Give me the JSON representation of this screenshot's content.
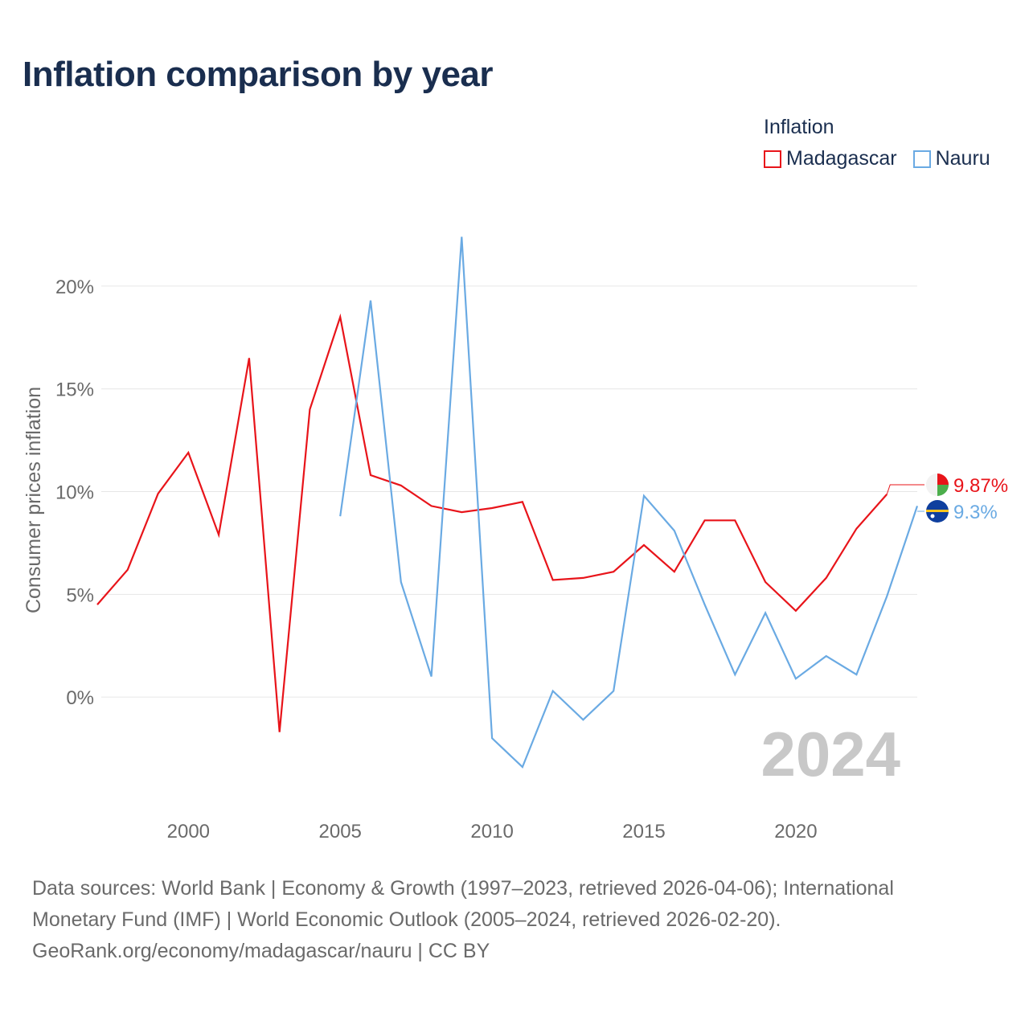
{
  "title": "Inflation comparison by year",
  "legend": {
    "title": "Inflation",
    "items": [
      {
        "label": "Madagascar",
        "color": "#e8141a"
      },
      {
        "label": "Nauru",
        "color": "#6aaae3"
      }
    ]
  },
  "chart_data": {
    "type": "line",
    "title": "Inflation comparison by year",
    "xlabel": "",
    "ylabel": "Consumer prices inflation",
    "xlim": [
      1997,
      2024
    ],
    "ylim": [
      -5,
      22.5
    ],
    "x_ticks": [
      2000,
      2005,
      2010,
      2015,
      2020
    ],
    "y_ticks": [
      0,
      5,
      10,
      15,
      20
    ],
    "y_tick_labels": [
      "0%",
      "5%",
      "10%",
      "15%",
      "20%"
    ],
    "grid": true,
    "year_annotation": "2024",
    "series": [
      {
        "name": "Madagascar",
        "color": "#e8141a",
        "x": [
          1997,
          1998,
          1999,
          2000,
          2001,
          2002,
          2003,
          2004,
          2005,
          2006,
          2007,
          2008,
          2009,
          2010,
          2011,
          2012,
          2013,
          2014,
          2015,
          2016,
          2017,
          2018,
          2019,
          2020,
          2021,
          2022,
          2023
        ],
        "values": [
          4.5,
          6.2,
          9.9,
          11.9,
          7.9,
          16.5,
          -1.7,
          14.0,
          18.5,
          10.8,
          10.3,
          9.3,
          9.0,
          9.2,
          9.5,
          5.7,
          5.8,
          6.1,
          7.4,
          6.1,
          8.6,
          8.6,
          5.6,
          4.2,
          5.8,
          8.2,
          9.87
        ],
        "end_label": "9.87%"
      },
      {
        "name": "Nauru",
        "color": "#6aaae3",
        "x": [
          2005,
          2006,
          2007,
          2008,
          2009,
          2010,
          2011,
          2012,
          2013,
          2014,
          2015,
          2016,
          2017,
          2018,
          2019,
          2020,
          2021,
          2022,
          2023,
          2024
        ],
        "values": [
          8.8,
          19.3,
          5.6,
          1.0,
          22.4,
          -2.0,
          -3.4,
          0.3,
          -1.1,
          0.3,
          9.8,
          8.1,
          4.5,
          1.1,
          4.1,
          0.9,
          2.0,
          1.1,
          4.9,
          9.3
        ],
        "end_label": "9.3%"
      }
    ]
  },
  "source": {
    "lines": [
      "Data sources: World Bank | Economy & Growth (1997–2023, retrieved 2026-04-06); International",
      "Monetary Fund (IMF) | World Economic Outlook (2005–2024, retrieved 2026-02-20).",
      "GeoRank.org/economy/madagascar/nauru | CC BY"
    ]
  }
}
